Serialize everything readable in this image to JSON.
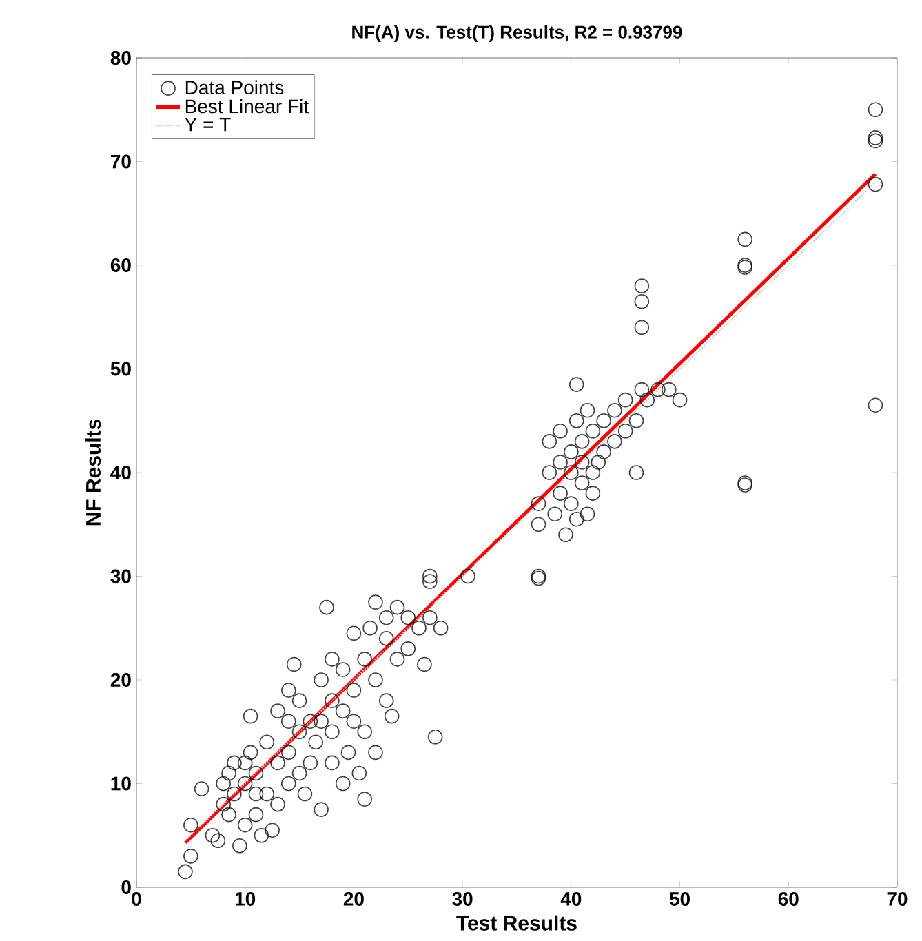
{
  "chart_data": {
    "type": "scatter",
    "title": "NF(A) vs. Test(T) Results, R2 = 0.93799",
    "xlabel": "Test Results",
    "ylabel": "NF Results",
    "xlim": [
      0,
      70
    ],
    "ylim": [
      0,
      80
    ],
    "xticks": [
      0,
      10,
      20,
      30,
      40,
      50,
      60,
      70
    ],
    "yticks": [
      0,
      10,
      20,
      30,
      40,
      50,
      60,
      70,
      80
    ],
    "grid": false,
    "legend": "top left",
    "series": [
      {
        "name": "Data Points",
        "marker": "circle",
        "color": "#000000",
        "x": [
          4.5,
          5,
          5,
          6,
          7,
          7.5,
          8,
          8,
          8.5,
          8.5,
          9,
          9,
          9.5,
          10,
          10,
          10,
          10.5,
          10.5,
          11,
          11,
          11,
          11.5,
          12,
          12,
          12.5,
          13,
          13,
          13,
          14,
          14,
          14,
          14,
          14.5,
          15,
          15,
          15,
          15.5,
          16,
          16,
          16.5,
          17,
          17,
          17,
          17.5,
          18,
          18,
          18,
          18,
          19,
          19,
          19,
          19.5,
          20,
          20,
          20,
          20.5,
          21,
          21,
          21,
          21.5,
          22,
          22,
          22,
          23,
          23,
          23,
          23.5,
          24,
          24,
          25,
          25,
          26,
          26.5,
          27,
          27,
          27,
          27.5,
          28,
          30.5,
          37,
          37,
          37,
          37,
          38,
          38,
          38.5,
          39,
          39,
          39,
          39.5,
          40,
          40,
          40,
          40.5,
          40.5,
          40.5,
          41,
          41,
          41,
          41.5,
          41.5,
          42,
          42,
          42,
          42.5,
          43,
          43,
          44,
          44,
          45,
          45,
          46,
          46,
          46.5,
          46.5,
          46.5,
          46.5,
          47,
          48,
          49,
          50,
          56,
          56,
          56,
          56,
          56,
          68,
          68,
          68,
          68,
          68
        ],
        "values": [
          1.5,
          3,
          6,
          9.5,
          5,
          4.5,
          8,
          10,
          11,
          7,
          9,
          12,
          4,
          6,
          10,
          12,
          13,
          16.5,
          7,
          9,
          11,
          5,
          9,
          14,
          5.5,
          8,
          12,
          17,
          10,
          13,
          16,
          19,
          21.5,
          11,
          15,
          18,
          9,
          12,
          16,
          14,
          7.5,
          16,
          20,
          27,
          12,
          15,
          18,
          22,
          10,
          17,
          21,
          13,
          16,
          19,
          24.5,
          11,
          8.5,
          15,
          22,
          25,
          13,
          20,
          27.5,
          18,
          24,
          26,
          16.5,
          22,
          27,
          23,
          26,
          25,
          21.5,
          26,
          29.5,
          30,
          14.5,
          25,
          30,
          37,
          35,
          30,
          29.8,
          40,
          43,
          36,
          38,
          41,
          44,
          34,
          37,
          40,
          42,
          48.5,
          45,
          35.5,
          39,
          41,
          43,
          36,
          46,
          38,
          40,
          44,
          41,
          42,
          45,
          43,
          46,
          44,
          47,
          40,
          45,
          48,
          54,
          56.5,
          58,
          47,
          48,
          48,
          47,
          62.5,
          60,
          59.8,
          39,
          38.8,
          75,
          72.3,
          72,
          67.8,
          46.5
        ]
      },
      {
        "name": "Best Linear Fit",
        "type": "line",
        "color": "#ff0000",
        "line_style": "solid",
        "x": [
          4.5,
          68
        ],
        "values": [
          4.3,
          68.8
        ]
      },
      {
        "name": "Y = T",
        "type": "line",
        "color": "#c8c8c8",
        "line_style": "dotted",
        "x": [
          4.5,
          68
        ],
        "values": [
          4.5,
          68
        ]
      }
    ]
  }
}
